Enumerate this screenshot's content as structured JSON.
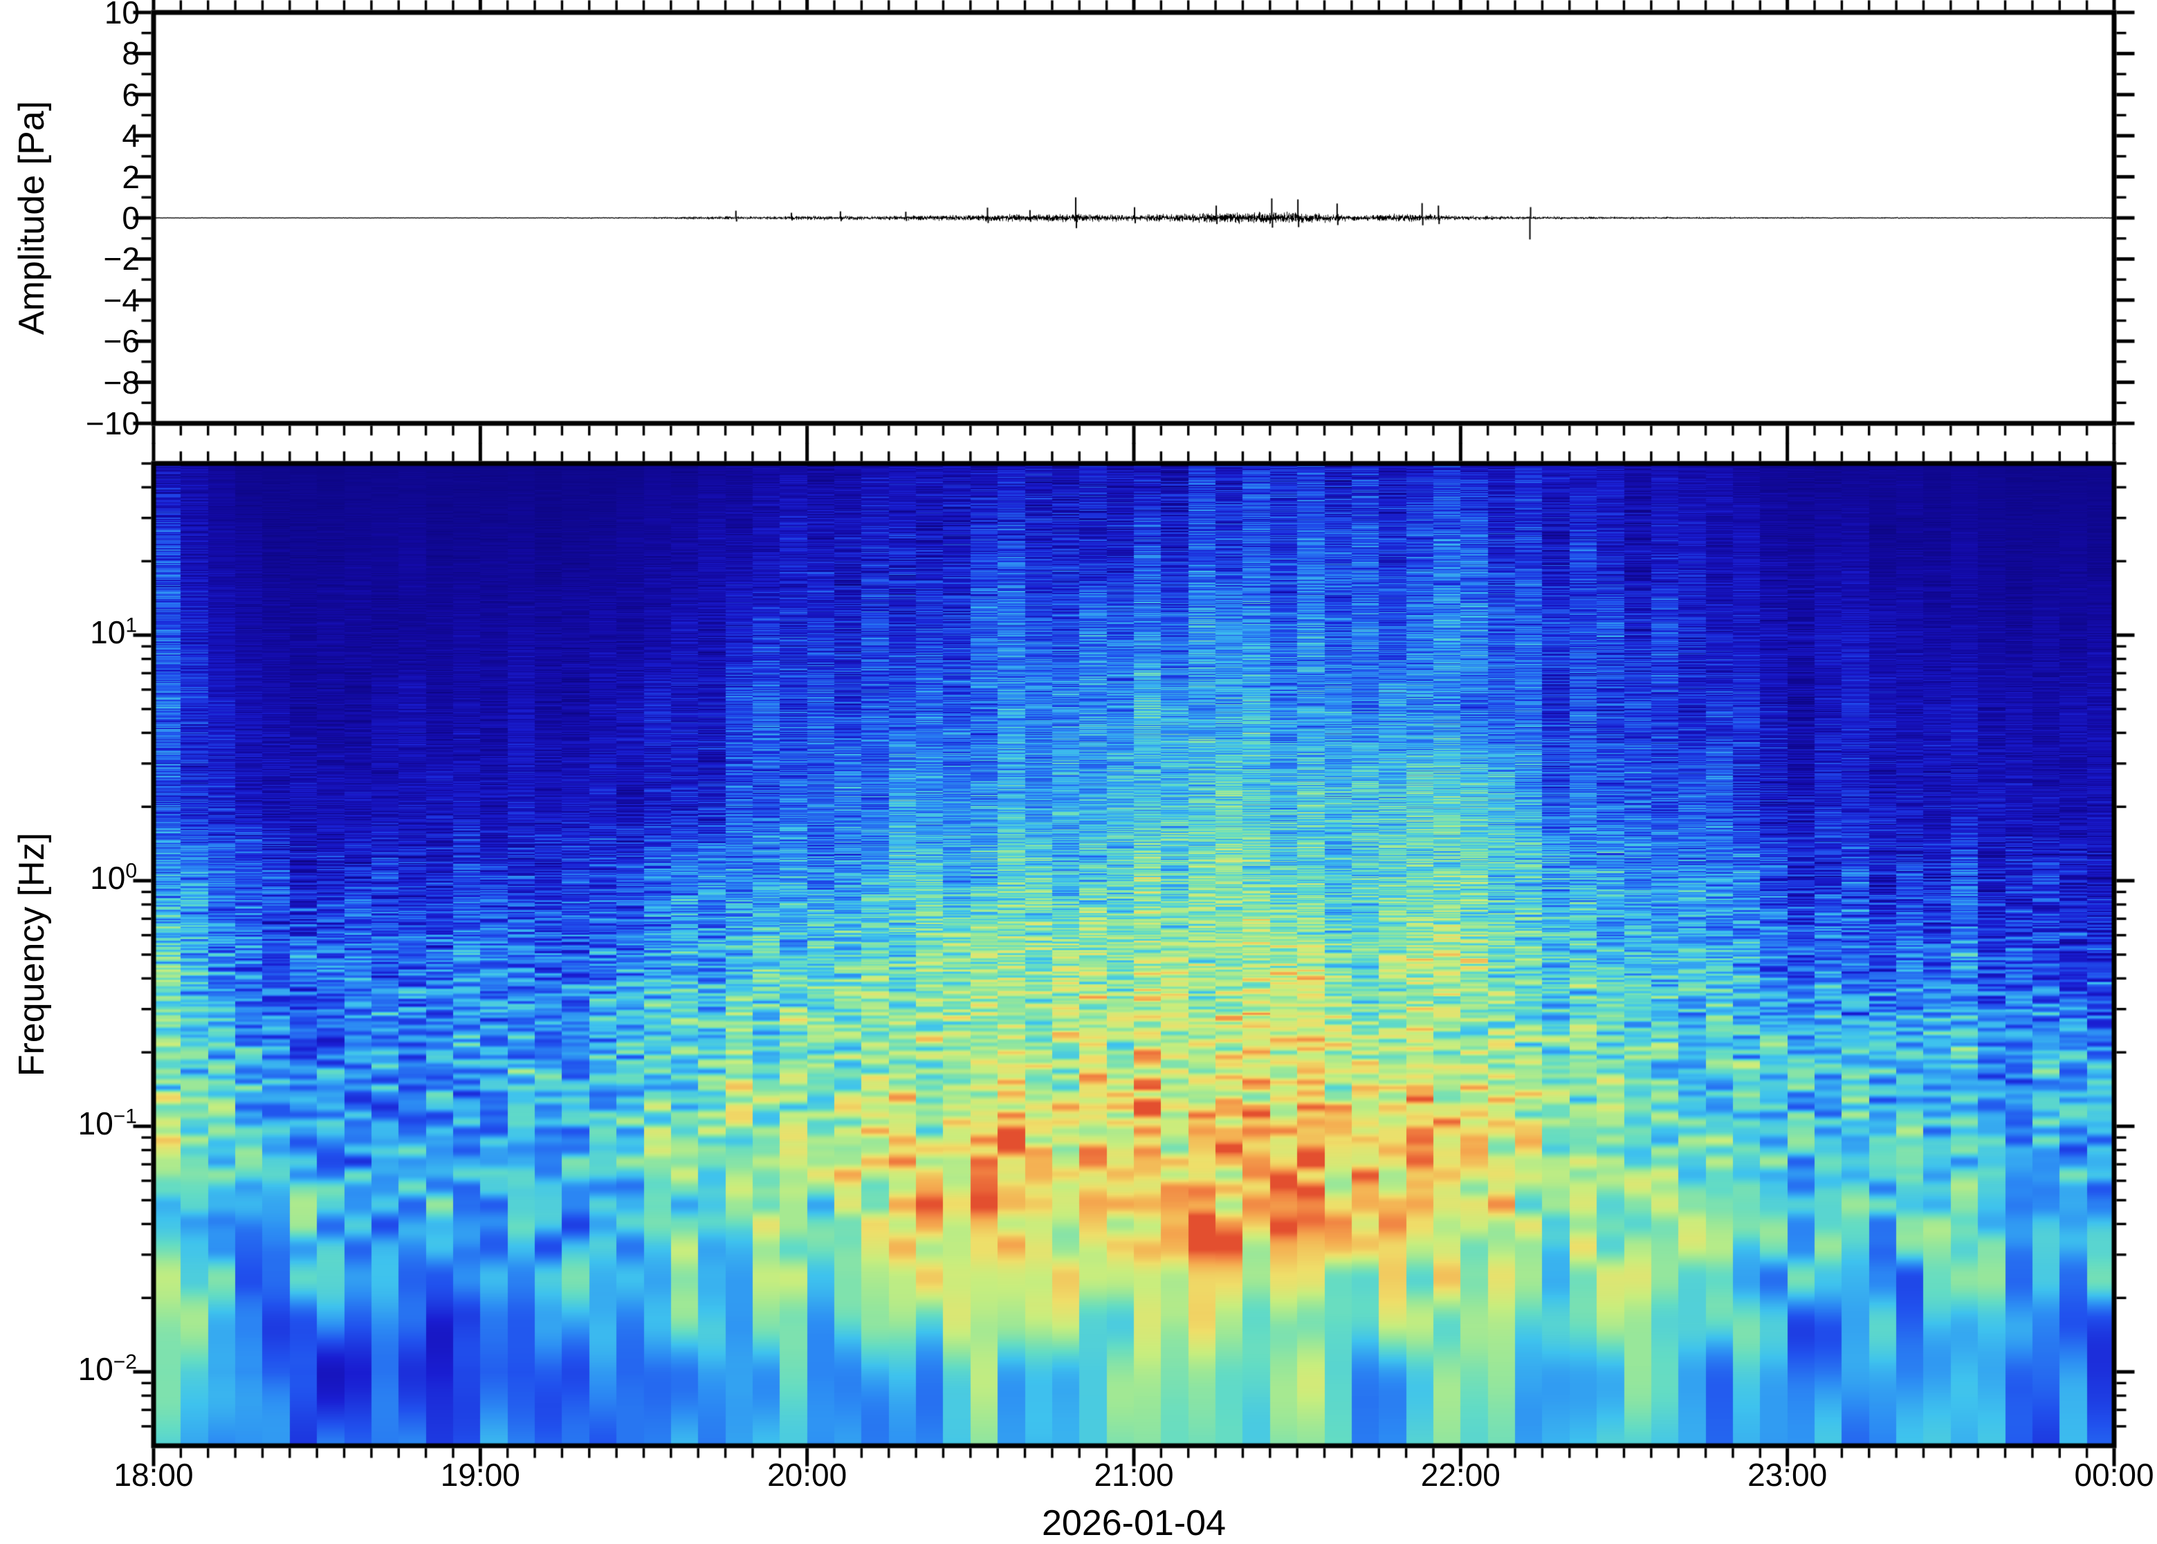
{
  "figure_type": "waveform-and-spectrogram",
  "date_label": "2026-01-04",
  "colors": {
    "background": "#ffffff",
    "frame": "#000000",
    "waveform": "#000000"
  },
  "chart_data": [
    {
      "type": "line",
      "panel": "waveform",
      "title": "",
      "xlabel": "",
      "ylabel": "Amplitude [Pa]",
      "ylim": [
        -10,
        10
      ],
      "y_major_tick_step": 2,
      "y_minor_tick_step": 1,
      "y_tick_labels": [
        "10",
        "8",
        "6",
        "4",
        "2",
        "0",
        "−2",
        "−4",
        "−6",
        "−8",
        "−10"
      ],
      "x_start": "18:00",
      "x_end": "00:00",
      "x_hours_total": 6,
      "x_minor_tick_minutes": 5,
      "line_color": "#000000",
      "baseline_pa": 0,
      "envelope_pa": [
        [
          0.0,
          0.025
        ],
        [
          1.0,
          0.028
        ],
        [
          1.5,
          0.04
        ],
        [
          1.68,
          0.08
        ],
        [
          1.85,
          0.08
        ],
        [
          2.0,
          0.11
        ],
        [
          2.2,
          0.1
        ],
        [
          2.45,
          0.14
        ],
        [
          2.6,
          0.17
        ],
        [
          2.8,
          0.2
        ],
        [
          3.0,
          0.17
        ],
        [
          3.2,
          0.22
        ],
        [
          3.35,
          0.3
        ],
        [
          3.55,
          0.26
        ],
        [
          3.7,
          0.12
        ],
        [
          3.85,
          0.22
        ],
        [
          3.95,
          0.12
        ],
        [
          4.1,
          0.09
        ],
        [
          4.3,
          0.07
        ],
        [
          4.7,
          0.05
        ],
        [
          5.2,
          0.04
        ],
        [
          6.0,
          0.032
        ]
      ],
      "spikes_pa": [
        [
          1.78,
          0.35
        ],
        [
          1.95,
          0.25
        ],
        [
          2.1,
          0.32
        ],
        [
          2.3,
          0.3
        ],
        [
          2.55,
          0.5
        ],
        [
          2.68,
          0.38
        ],
        [
          2.82,
          1.0
        ],
        [
          3.0,
          0.52
        ],
        [
          3.25,
          0.6
        ],
        [
          3.42,
          0.95
        ],
        [
          3.5,
          0.9
        ],
        [
          3.62,
          0.7
        ],
        [
          3.88,
          0.72
        ],
        [
          3.93,
          0.6
        ],
        [
          4.21,
          -1.05
        ]
      ]
    },
    {
      "type": "heatmap",
      "panel": "spectrogram",
      "title": "",
      "xlabel": "2026-01-04",
      "ylabel": "Frequency [Hz]",
      "y_scale": "log",
      "freq_range_hz": [
        0.005,
        50
      ],
      "freq_tick_labels": [
        [
          "10",
          "1"
        ],
        [
          "10",
          "0"
        ],
        [
          "10",
          "−1"
        ],
        [
          "10",
          "−2"
        ]
      ],
      "freq_tick_values_hz": [
        10,
        1,
        0.1,
        0.01
      ],
      "x_tick_labels": [
        "18:00",
        "19:00",
        "20:00",
        "21:00",
        "22:00",
        "23:00",
        "00:00"
      ],
      "x_minor_tick_minutes": 5,
      "column_minutes": 5,
      "first_column_boost": 0.1,
      "second_column_boost": 0.04,
      "time_nodes_hours": [
        0,
        0.25,
        0.5,
        0.75,
        1,
        1.25,
        1.5,
        1.75,
        2,
        2.25,
        2.5,
        2.75,
        3,
        3.25,
        3.5,
        3.75,
        4,
        4.25,
        4.5,
        4.75,
        5,
        5.25,
        5.5,
        5.75,
        6
      ],
      "freq_nodes_hz": [
        50,
        20,
        10,
        5,
        2,
        1,
        0.5,
        0.2,
        0.1,
        0.05,
        0.02,
        0.01,
        0.005
      ],
      "intensity_grid_percent": [
        [
          8,
          4,
          3,
          3,
          3,
          3,
          4,
          7,
          11,
          13,
          15,
          17,
          17,
          19,
          21,
          19,
          17,
          14,
          12,
          9,
          6,
          5,
          4,
          4,
          3
        ],
        [
          13,
          8,
          6,
          6,
          6,
          6,
          7,
          11,
          17,
          19,
          23,
          27,
          27,
          29,
          31,
          29,
          26,
          22,
          18,
          14,
          10,
          8,
          7,
          6,
          5
        ],
        [
          17,
          10,
          8,
          8,
          8,
          9,
          10,
          15,
          23,
          27,
          31,
          35,
          35,
          37,
          39,
          37,
          33,
          28,
          22,
          18,
          14,
          12,
          10,
          9,
          8
        ],
        [
          19,
          12,
          10,
          10,
          11,
          11,
          13,
          19,
          29,
          33,
          37,
          41,
          41,
          43,
          45,
          43,
          38,
          32,
          26,
          20,
          16,
          14,
          12,
          11,
          10
        ],
        [
          24,
          17,
          14,
          13,
          15,
          14,
          18,
          26,
          36,
          41,
          45,
          49,
          49,
          51,
          53,
          51,
          46,
          40,
          32,
          26,
          21,
          18,
          16,
          14,
          13
        ],
        [
          34,
          30,
          24,
          23,
          27,
          24,
          30,
          38,
          46,
          51,
          55,
          58,
          58,
          59,
          61,
          59,
          54,
          48,
          40,
          34,
          29,
          26,
          24,
          22,
          20
        ],
        [
          42,
          38,
          33,
          32,
          36,
          33,
          39,
          46,
          54,
          59,
          63,
          65,
          65,
          66,
          67,
          65,
          61,
          55,
          48,
          43,
          38,
          34,
          31,
          29,
          27
        ],
        [
          50,
          46,
          42,
          41,
          44,
          43,
          49,
          55,
          63,
          67,
          71,
          73,
          73,
          75,
          77,
          74,
          68,
          62,
          56,
          51,
          47,
          45,
          43,
          41,
          39
        ],
        [
          55,
          50,
          45,
          43,
          47,
          48,
          53,
          59,
          67,
          73,
          77,
          81,
          83,
          85,
          86,
          83,
          76,
          68,
          62,
          57,
          53,
          51,
          49,
          47,
          45
        ],
        [
          57,
          51,
          47,
          45,
          48,
          50,
          55,
          61,
          69,
          75,
          80,
          84,
          86,
          88,
          89,
          86,
          78,
          70,
          63,
          58,
          54,
          52,
          50,
          48,
          46
        ],
        [
          53,
          47,
          43,
          41,
          43,
          45,
          49,
          55,
          61,
          66,
          69,
          72,
          73,
          74,
          75,
          73,
          67,
          61,
          56,
          52,
          49,
          47,
          46,
          44,
          43
        ],
        [
          46,
          30,
          34,
          37,
          33,
          36,
          41,
          47,
          53,
          57,
          59,
          61,
          62,
          63,
          63,
          61,
          56,
          52,
          48,
          45,
          43,
          42,
          41,
          40,
          39
        ],
        [
          43,
          36,
          38,
          40,
          35,
          38,
          42,
          46,
          50,
          53,
          55,
          56,
          57,
          57,
          57,
          55,
          52,
          49,
          46,
          44,
          42,
          41,
          40,
          39,
          38
        ]
      ],
      "colormap_stops": [
        [
          0.0,
          "#0d0680"
        ],
        [
          0.1,
          "#140ba8"
        ],
        [
          0.2,
          "#1a1ed2"
        ],
        [
          0.3,
          "#2152ee"
        ],
        [
          0.4,
          "#2d8ef4"
        ],
        [
          0.49,
          "#3fc3ee"
        ],
        [
          0.57,
          "#63dcc5"
        ],
        [
          0.65,
          "#97e79b"
        ],
        [
          0.73,
          "#c9ee7e"
        ],
        [
          0.81,
          "#efdf6a"
        ],
        [
          0.89,
          "#f5ad51"
        ],
        [
          0.95,
          "#f07c40"
        ],
        [
          1.0,
          "#e24a2d"
        ]
      ]
    }
  ]
}
